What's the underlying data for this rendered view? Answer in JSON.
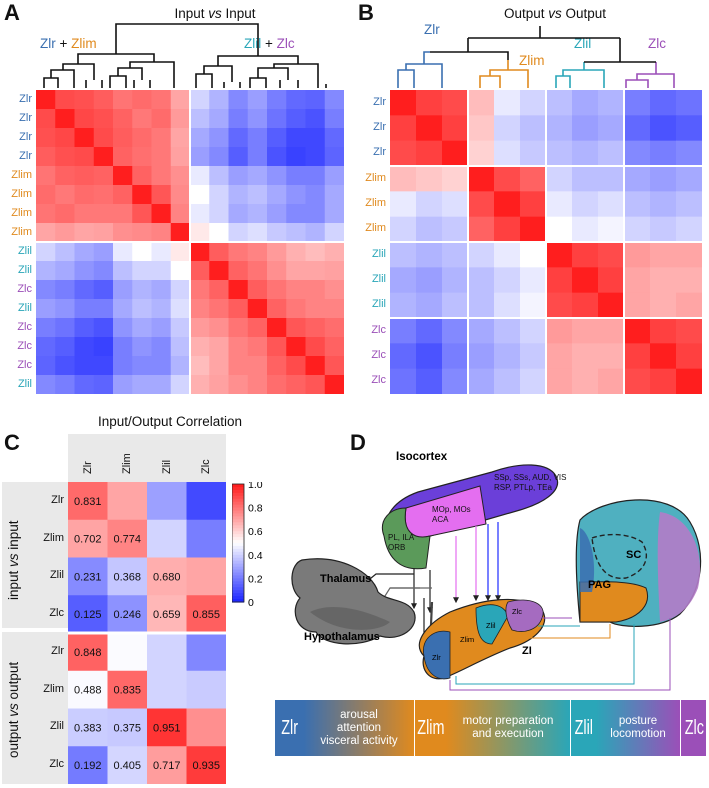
{
  "panels": {
    "a": {
      "letter": "A",
      "title": "Input vs Input",
      "title_parts": [
        "Input ",
        "vs",
        " Input"
      ],
      "group_left": [
        "Zlr",
        " + ",
        "Zlim"
      ],
      "group_right": [
        "Zlil",
        " + ",
        "Zlc"
      ],
      "rows": [
        "Zlr",
        "Zlr",
        "Zlr",
        "Zlr",
        "Zlim",
        "Zlim",
        "Zlim",
        "Zlim",
        "Zlil",
        "Zlil",
        "Zlc",
        "Zlil",
        "Zlc",
        "Zlc",
        "Zlc",
        "Zlil"
      ]
    },
    "b": {
      "letter": "B",
      "title": "Output vs Output",
      "title_parts": [
        "Output ",
        "vs",
        " Output"
      ],
      "clusters": [
        "Zlr",
        "Zlim",
        "Zlil",
        "Zlc"
      ],
      "rows": [
        "Zlr",
        "Zlr",
        "Zlr",
        "Zlim",
        "Zlim",
        "Zlim",
        "Zlil",
        "Zlil",
        "Zlil",
        "Zlc",
        "Zlc",
        "Zlc"
      ]
    },
    "c": {
      "letter": "C",
      "title": "Input/Output Correlation",
      "columns": [
        "Zlr",
        "Zlim",
        "Zlil",
        "Zlc"
      ],
      "section_input": [
        "input ",
        "vs",
        " input"
      ],
      "section_output": [
        "output ",
        "vs",
        " output"
      ],
      "input_rows": [
        {
          "label": "Zlr",
          "values": [
            "0.831",
            "",
            "",
            ""
          ]
        },
        {
          "label": "Zlim",
          "values": [
            "0.702",
            "0.774",
            "",
            ""
          ]
        },
        {
          "label": "Zlil",
          "values": [
            "0.231",
            "0.368",
            "0.680",
            ""
          ]
        },
        {
          "label": "Zlc",
          "values": [
            "0.125",
            "0.246",
            "0.659",
            "0.855"
          ]
        }
      ],
      "output_rows": [
        {
          "label": "Zlr",
          "values": [
            "0.848",
            "",
            "",
            ""
          ]
        },
        {
          "label": "Zlim",
          "values": [
            "0.488",
            "0.835",
            "",
            ""
          ]
        },
        {
          "label": "Zlil",
          "values": [
            "0.383",
            "0.375",
            "0.951",
            ""
          ]
        },
        {
          "label": "Zlc",
          "values": [
            "0.192",
            "0.405",
            "0.717",
            "0.935"
          ]
        }
      ],
      "colorbar_ticks": [
        "1.0",
        "0.8",
        "0.6",
        "0.4",
        "0.2",
        "0"
      ]
    },
    "d": {
      "letter": "D",
      "isocortex": "Isocortex",
      "region_top": [
        "SSp, SSs, AUD, VIS",
        "RSP, PTLp, TEa"
      ],
      "region_mid": [
        "MOp, MOs",
        "ACA"
      ],
      "region_left": [
        "PL, ILA",
        "ORB"
      ],
      "thalamus": "Thalamus",
      "hypothalamus": "Hypothalamus",
      "zi": "ZI",
      "zi_sub": [
        "Zlc",
        "Zlil",
        "Zlim",
        "Zlr"
      ],
      "sc": "SC",
      "pag": "PAG",
      "band": [
        {
          "label": "Zlr",
          "kind": "zone"
        },
        {
          "label": "arousal attention visceral activity",
          "lines": [
            "arousal",
            "attention",
            "visceral activity"
          ],
          "kind": "func"
        },
        {
          "label": "Zlim",
          "kind": "zone"
        },
        {
          "label": "motor preparation and execution",
          "lines": [
            "motor preparation",
            "and  execution"
          ],
          "kind": "func"
        },
        {
          "label": "Zlil",
          "kind": "zone"
        },
        {
          "label": "posture locomotion",
          "lines": [
            "posture",
            "locomotion"
          ],
          "kind": "func"
        },
        {
          "label": "Zlc",
          "kind": "zone"
        }
      ]
    }
  },
  "colors": {
    "zlr": "#3a6fb0",
    "zlim": "#e08a1e",
    "zlil": "#2aa6b8",
    "zlc": "#9b4fb8",
    "blue": "#1f2bff",
    "red": "#ff1f1f"
  },
  "matrix_a": [
    [
      1.0,
      0.8,
      0.78,
      0.72,
      0.62,
      0.66,
      0.62,
      0.4,
      -0.2,
      -0.35,
      -0.55,
      -0.45,
      -0.6,
      -0.7,
      -0.72,
      -0.55
    ],
    [
      0.8,
      1.0,
      0.82,
      0.78,
      0.7,
      0.6,
      0.66,
      0.45,
      -0.3,
      -0.4,
      -0.6,
      -0.5,
      -0.65,
      -0.75,
      -0.8,
      -0.6
    ],
    [
      0.78,
      0.82,
      1.0,
      0.8,
      0.72,
      0.66,
      0.6,
      0.4,
      -0.4,
      -0.5,
      -0.7,
      -0.6,
      -0.75,
      -0.85,
      -0.85,
      -0.7
    ],
    [
      0.72,
      0.78,
      0.8,
      1.0,
      0.7,
      0.64,
      0.6,
      0.42,
      -0.45,
      -0.55,
      -0.75,
      -0.6,
      -0.8,
      -0.88,
      -0.85,
      -0.72
    ],
    [
      0.62,
      0.7,
      0.72,
      0.7,
      1.0,
      0.7,
      0.6,
      0.5,
      -0.1,
      -0.3,
      -0.45,
      -0.4,
      -0.5,
      -0.6,
      -0.6,
      -0.45
    ],
    [
      0.66,
      0.6,
      0.66,
      0.64,
      0.7,
      1.0,
      0.75,
      0.52,
      0.0,
      -0.2,
      -0.35,
      -0.3,
      -0.4,
      -0.5,
      -0.55,
      -0.4
    ],
    [
      0.62,
      0.66,
      0.6,
      0.6,
      0.6,
      0.75,
      1.0,
      0.55,
      -0.1,
      -0.2,
      -0.4,
      -0.35,
      -0.45,
      -0.55,
      -0.55,
      -0.4
    ],
    [
      0.4,
      0.45,
      0.4,
      0.42,
      0.5,
      0.52,
      0.55,
      1.0,
      0.1,
      0.0,
      -0.2,
      -0.15,
      -0.25,
      -0.3,
      -0.35,
      -0.2
    ],
    [
      -0.2,
      -0.3,
      -0.4,
      -0.45,
      -0.1,
      0.0,
      -0.1,
      0.1,
      1.0,
      0.72,
      0.6,
      0.55,
      0.45,
      0.35,
      0.3,
      0.35
    ],
    [
      -0.35,
      -0.4,
      -0.5,
      -0.55,
      -0.3,
      -0.2,
      -0.2,
      0.0,
      0.72,
      1.0,
      0.7,
      0.62,
      0.5,
      0.4,
      0.4,
      0.42
    ],
    [
      -0.55,
      -0.6,
      -0.7,
      -0.75,
      -0.45,
      -0.35,
      -0.4,
      -0.2,
      0.6,
      0.7,
      1.0,
      0.72,
      0.62,
      0.55,
      0.55,
      0.5
    ],
    [
      -0.45,
      -0.5,
      -0.6,
      -0.6,
      -0.4,
      -0.3,
      -0.35,
      -0.15,
      0.55,
      0.62,
      0.72,
      1.0,
      0.7,
      0.6,
      0.55,
      0.55
    ],
    [
      -0.6,
      -0.65,
      -0.75,
      -0.8,
      -0.5,
      -0.4,
      -0.45,
      -0.25,
      0.45,
      0.5,
      0.62,
      0.7,
      1.0,
      0.75,
      0.7,
      0.65
    ],
    [
      -0.7,
      -0.75,
      -0.85,
      -0.88,
      -0.6,
      -0.5,
      -0.55,
      -0.3,
      0.35,
      0.4,
      0.55,
      0.6,
      0.75,
      1.0,
      0.8,
      0.7
    ],
    [
      -0.72,
      -0.8,
      -0.85,
      -0.85,
      -0.6,
      -0.55,
      -0.55,
      -0.35,
      0.3,
      0.4,
      0.55,
      0.55,
      0.7,
      0.8,
      1.0,
      0.75
    ],
    [
      -0.55,
      -0.6,
      -0.7,
      -0.72,
      -0.45,
      -0.4,
      -0.4,
      -0.2,
      0.35,
      0.42,
      0.5,
      0.55,
      0.65,
      0.7,
      0.75,
      1.0
    ]
  ],
  "matrix_b": [
    [
      1.0,
      0.85,
      0.8,
      0.3,
      -0.1,
      -0.2,
      -0.3,
      -0.4,
      -0.35,
      -0.6,
      -0.7,
      -0.65
    ],
    [
      0.85,
      1.0,
      0.85,
      0.25,
      -0.2,
      -0.3,
      -0.35,
      -0.45,
      -0.4,
      -0.7,
      -0.8,
      -0.75
    ],
    [
      0.8,
      0.85,
      1.0,
      0.2,
      -0.15,
      -0.25,
      -0.3,
      -0.35,
      -0.3,
      -0.55,
      -0.6,
      -0.55
    ],
    [
      0.3,
      0.25,
      0.2,
      1.0,
      0.8,
      0.7,
      -0.2,
      -0.3,
      -0.3,
      -0.4,
      -0.45,
      -0.4
    ],
    [
      -0.1,
      -0.2,
      -0.15,
      0.8,
      1.0,
      0.85,
      -0.1,
      -0.2,
      -0.15,
      -0.3,
      -0.35,
      -0.3
    ],
    [
      -0.2,
      -0.3,
      -0.25,
      0.7,
      0.85,
      1.0,
      0.0,
      -0.1,
      -0.05,
      -0.2,
      -0.25,
      -0.2
    ],
    [
      -0.3,
      -0.35,
      -0.3,
      -0.2,
      -0.1,
      0.0,
      1.0,
      0.85,
      0.8,
      0.45,
      0.4,
      0.4
    ],
    [
      -0.4,
      -0.45,
      -0.35,
      -0.3,
      -0.2,
      -0.1,
      0.85,
      1.0,
      0.85,
      0.4,
      0.35,
      0.35
    ],
    [
      -0.35,
      -0.4,
      -0.3,
      -0.3,
      -0.15,
      -0.05,
      0.8,
      0.85,
      1.0,
      0.4,
      0.35,
      0.4
    ],
    [
      -0.6,
      -0.7,
      -0.55,
      -0.4,
      -0.3,
      -0.2,
      0.45,
      0.4,
      0.4,
      1.0,
      0.85,
      0.8
    ],
    [
      -0.7,
      -0.8,
      -0.6,
      -0.45,
      -0.35,
      -0.25,
      0.4,
      0.35,
      0.35,
      0.85,
      1.0,
      0.85
    ],
    [
      -0.65,
      -0.75,
      -0.55,
      -0.4,
      -0.3,
      -0.2,
      0.4,
      0.35,
      0.4,
      0.8,
      0.85,
      1.0
    ]
  ],
  "matrix_c_values": [
    [
      0.831,
      0.7,
      0.28,
      0.08
    ],
    [
      0.702,
      0.774,
      0.4,
      0.2
    ],
    [
      0.231,
      0.368,
      0.68,
      0.7
    ],
    [
      0.125,
      0.246,
      0.659,
      0.855
    ],
    [
      0.848,
      0.49,
      0.4,
      0.22
    ],
    [
      0.488,
      0.835,
      0.4,
      0.38
    ],
    [
      0.383,
      0.375,
      0.951,
      0.75
    ],
    [
      0.192,
      0.405,
      0.717,
      0.935
    ]
  ]
}
